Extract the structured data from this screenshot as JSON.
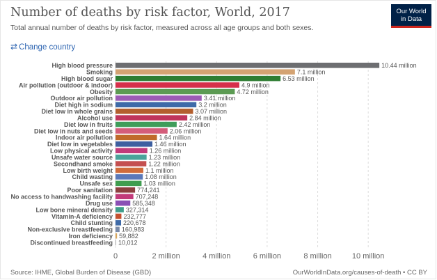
{
  "header": {
    "title": "Number of deaths by risk factor, World, 2017",
    "subtitle": "Total annual number of deaths by risk factor, measured across all age groups and both sexes."
  },
  "logo": {
    "line1": "Our World",
    "line2": "in Data",
    "bg_color": "#002147",
    "accent_color": "#ce261e"
  },
  "controls": {
    "change_country_label": "Change country",
    "change_icon": "swap-arrows-icon"
  },
  "footer": {
    "source": "Source: IHME, Global Burden of Disease (GBD)",
    "license": "OurWorldInData.org/causes-of-death • CC BY"
  },
  "chart_data": {
    "type": "bar",
    "orientation": "horizontal",
    "categories": [
      "High blood pressure",
      "Smoking",
      "High blood sugar",
      "Air pollution (outdoor & indoor)",
      "Obesity",
      "Outdoor air pollution",
      "Diet high in sodium",
      "Diet low in whole grains",
      "Alcohol use",
      "Diet low in fruits",
      "Diet low in nuts and seeds",
      "Indoor air pollution",
      "Diet low in vegetables",
      "Low physical activity",
      "Unsafe water source",
      "Secondhand smoke",
      "Low birth weight",
      "Child wasting",
      "Unsafe sex",
      "Poor sanitation",
      "No access to handwashing facility",
      "Drug use",
      "Low bone mineral density",
      "Vitamin-A deficiency",
      "Child stunting",
      "Non-exclusive breastfeeding",
      "Iron deficiency",
      "Discontinued breastfeeding"
    ],
    "values": [
      10440000,
      7100000,
      6530000,
      4900000,
      4720000,
      3410000,
      3200000,
      3070000,
      2840000,
      2420000,
      2060000,
      1640000,
      1460000,
      1260000,
      1230000,
      1220000,
      1100000,
      1080000,
      1030000,
      774241,
      707248,
      585348,
      327314,
      232777,
      220678,
      160983,
      59882,
      10012
    ],
    "value_labels": [
      "10.44 million",
      "7.1 million",
      "6.53 million",
      "4.9 million",
      "4.72 million",
      "3.41 million",
      "3.2 million",
      "3.07 million",
      "2.84 million",
      "2.42 million",
      "2.06 million",
      "1.64 million",
      "1.46 million",
      "1.26 million",
      "1.23 million",
      "1.22 million",
      "1.1 million",
      "1.08 million",
      "1.03 million",
      "774,241",
      "707,248",
      "585,348",
      "327,314",
      "232,777",
      "220,678",
      "160,983",
      "59,882",
      "10,012"
    ],
    "colors": [
      "#6d6e71",
      "#d4a373",
      "#2e7d32",
      "#d62f4a",
      "#5c9b53",
      "#9c5bb5",
      "#3e6aa8",
      "#b35f2e",
      "#c0345c",
      "#3f9d5a",
      "#d45d7a",
      "#c06a2a",
      "#3e5fa0",
      "#c23a7a",
      "#4aa39a",
      "#c44f4f",
      "#d06b3a",
      "#5a78b8",
      "#3f9d4f",
      "#8c3f3f",
      "#c23a7a",
      "#8a4fb5",
      "#3f9d8a",
      "#c4502f",
      "#3e6aa8",
      "#7a8aa8",
      "#d9a65a",
      "#b0b0b0"
    ],
    "xlim": [
      0,
      11400000
    ],
    "x_ticks": [
      0,
      2000000,
      4000000,
      6000000,
      8000000,
      10000000
    ],
    "x_tick_labels": [
      "0",
      "2 million",
      "4 million",
      "6 million",
      "8 million",
      "10 million"
    ],
    "grid": true,
    "legend": "none"
  }
}
